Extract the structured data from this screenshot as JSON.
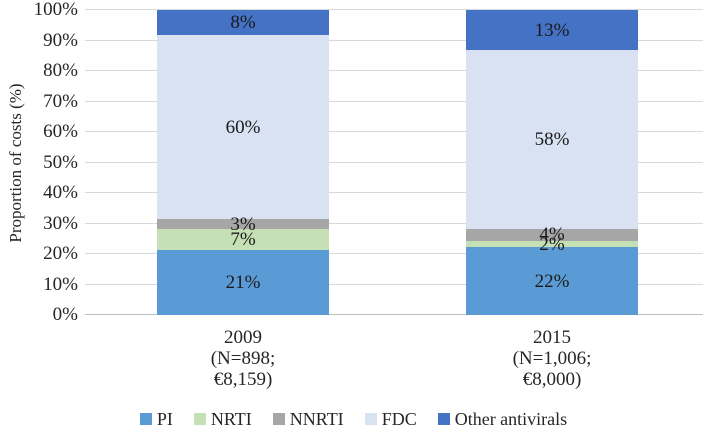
{
  "chart_data": {
    "type": "bar",
    "stacked": true,
    "percent_stacked": true,
    "title": "",
    "xlabel": "",
    "ylabel": "Proportion of costs (%)",
    "ylim": [
      0,
      100
    ],
    "yticks": [
      0,
      10,
      20,
      30,
      40,
      50,
      60,
      70,
      80,
      90,
      100
    ],
    "ytick_suffix": "%",
    "grid": true,
    "legend_position": "bottom",
    "categories": [
      "2009 (N=898; €8,159)",
      "2015 (N=1,006; €8,000)"
    ],
    "category_lines": [
      [
        "2009",
        "(N=898;",
        "€8,159)"
      ],
      [
        "2015",
        "(N=1,006;",
        "€8,000)"
      ]
    ],
    "series": [
      {
        "name": "PI",
        "color": "#5B9BD5",
        "values": [
          21,
          22
        ]
      },
      {
        "name": "NRTI",
        "color": "#C5E0B4",
        "values": [
          7,
          2
        ]
      },
      {
        "name": "NNRTI",
        "color": "#A6A6A6",
        "values": [
          3,
          4
        ]
      },
      {
        "name": "FDC",
        "color": "#D9E2F3",
        "values": [
          60,
          58
        ]
      },
      {
        "name": "Other antivirals",
        "color": "#4472C4",
        "values": [
          8,
          13
        ]
      }
    ],
    "data_label_suffix": "%",
    "colors": {
      "gridline": "#D9D9D9",
      "axis_line": "#BFBFBF",
      "text": "#262626",
      "background": "#FFFFFF"
    }
  }
}
